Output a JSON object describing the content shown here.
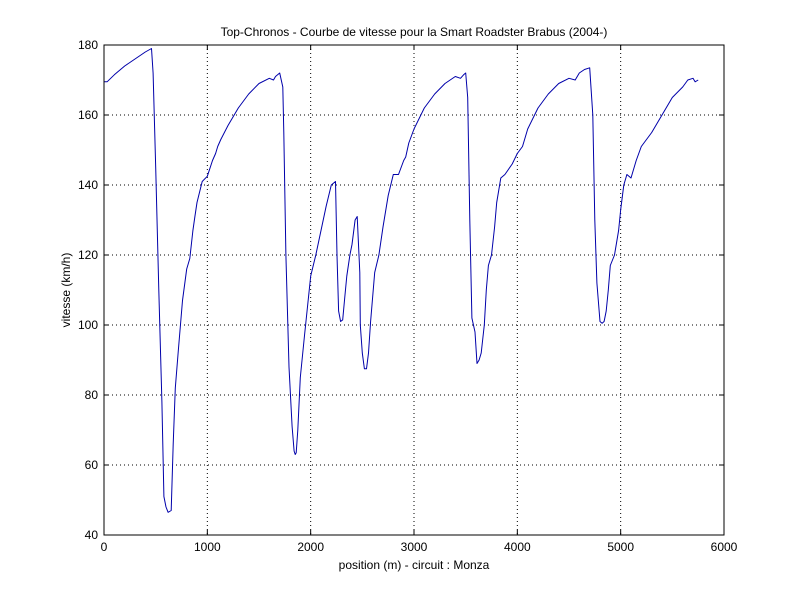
{
  "chart_data": {
    "type": "line",
    "title": "Top-Chronos - Courbe de vitesse pour la Smart Roadster Brabus (2004-)",
    "xlabel": "position (m) - circuit : Monza",
    "ylabel": "vitesse (km/h)",
    "xlim": [
      0,
      6000
    ],
    "ylim": [
      40,
      180
    ],
    "xticks": [
      0,
      1000,
      2000,
      3000,
      4000,
      5000,
      6000
    ],
    "yticks": [
      40,
      60,
      80,
      100,
      120,
      140,
      160,
      180
    ],
    "grid": true,
    "series": [
      {
        "color": "#0000aa",
        "x": [
          0,
          30,
          100,
          200,
          300,
          400,
          460,
          475,
          500,
          530,
          560,
          580,
          600,
          620,
          650,
          670,
          690,
          720,
          760,
          800,
          830,
          860,
          880,
          900,
          950,
          1000,
          1050,
          1080,
          1100,
          1130,
          1200,
          1300,
          1400,
          1500,
          1600,
          1640,
          1660,
          1700,
          1730,
          1740,
          1760,
          1790,
          1820,
          1840,
          1850,
          1860,
          1875,
          1900,
          1940,
          2000,
          2050,
          2100,
          2150,
          2200,
          2240,
          2255,
          2270,
          2290,
          2310,
          2330,
          2350,
          2380,
          2400,
          2430,
          2450,
          2475,
          2480,
          2500,
          2520,
          2540,
          2560,
          2580,
          2620,
          2660,
          2700,
          2750,
          2800,
          2850,
          2900,
          2920,
          2950,
          3000,
          3100,
          3200,
          3300,
          3400,
          3450,
          3480,
          3500,
          3520,
          3540,
          3560,
          3590,
          3610,
          3630,
          3650,
          3680,
          3700,
          3720,
          3750,
          3780,
          3800,
          3840,
          3880,
          3950,
          4000,
          4050,
          4100,
          4200,
          4300,
          4400,
          4500,
          4560,
          4600,
          4650,
          4700,
          4730,
          4750,
          4770,
          4800,
          4820,
          4840,
          4860,
          4880,
          4900,
          4940,
          4980,
          5000,
          5030,
          5060,
          5100,
          5150,
          5200,
          5300,
          5400,
          5500,
          5600,
          5650,
          5700,
          5720,
          5750
        ],
        "y": [
          169.5,
          169.5,
          171.5,
          174,
          176,
          178,
          179,
          172,
          145,
          110,
          78,
          51,
          48,
          46.5,
          47,
          66,
          82,
          93,
          107,
          116,
          119,
          127,
          131,
          135,
          141,
          142.5,
          147,
          149,
          151,
          153,
          157,
          162,
          166,
          169,
          170.5,
          170,
          171,
          172,
          168,
          155,
          120,
          88,
          71,
          64,
          63,
          63.5,
          70,
          85,
          97,
          114,
          120,
          127,
          134,
          140,
          141,
          120,
          104,
          101,
          101.5,
          108,
          114,
          120,
          123,
          130,
          131,
          115,
          100,
          92,
          87.5,
          87.5,
          92,
          101,
          115,
          120,
          128,
          137,
          143,
          143,
          147,
          148,
          152,
          156,
          162,
          166,
          169,
          171,
          170.5,
          171.5,
          172,
          165,
          130,
          102,
          98,
          89,
          90,
          92,
          100,
          110,
          117,
          120,
          128,
          135,
          142,
          143,
          146,
          149,
          151,
          156,
          162,
          166,
          169,
          170.5,
          170,
          172,
          173,
          173.5,
          160,
          130,
          112,
          101,
          100.5,
          101,
          104,
          110,
          117,
          120,
          127,
          133,
          140,
          143,
          142,
          147,
          151,
          155,
          160,
          165,
          168,
          170,
          170.5,
          169.5,
          170
        ]
      }
    ]
  }
}
